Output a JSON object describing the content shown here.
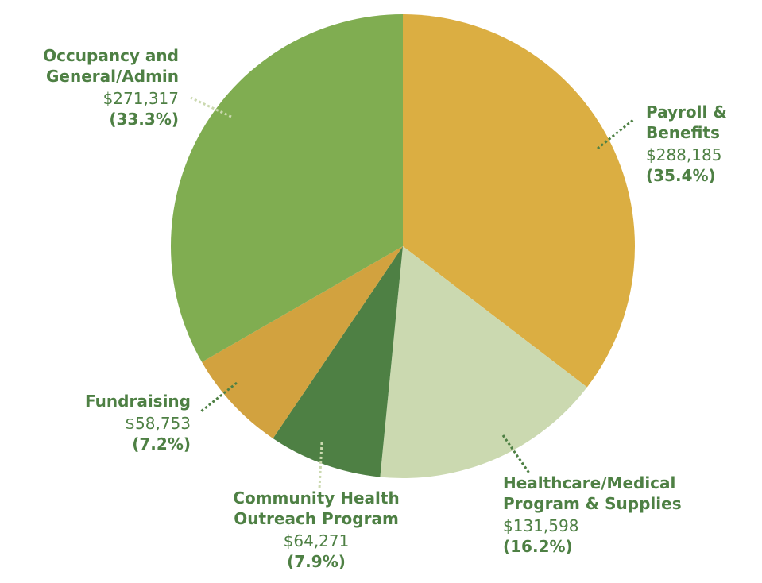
{
  "chart_data": {
    "type": "pie",
    "categories": [
      "Payroll &\nBenefits",
      "Healthcare/Medical\nProgram & Supplies",
      "Community Health\nOutreach Program",
      "Fundraising",
      "Occupancy and\nGeneral/Admin"
    ],
    "values": [
      288185,
      131598,
      64271,
      58753,
      271317
    ],
    "value_labels": [
      "$288,185",
      "$131,598",
      "$64,271",
      "$58,753",
      "$271,317"
    ],
    "percents": [
      35.4,
      16.2,
      7.9,
      7.2,
      33.3
    ],
    "percent_labels": [
      "(35.4%)",
      "(16.2%)",
      "(7.9%)",
      "(7.2%)",
      "(33.3%)"
    ],
    "colors": [
      "#dbae42",
      "#cbd9b0",
      "#4e8044",
      "#d2a23f",
      "#80ad51"
    ]
  }
}
